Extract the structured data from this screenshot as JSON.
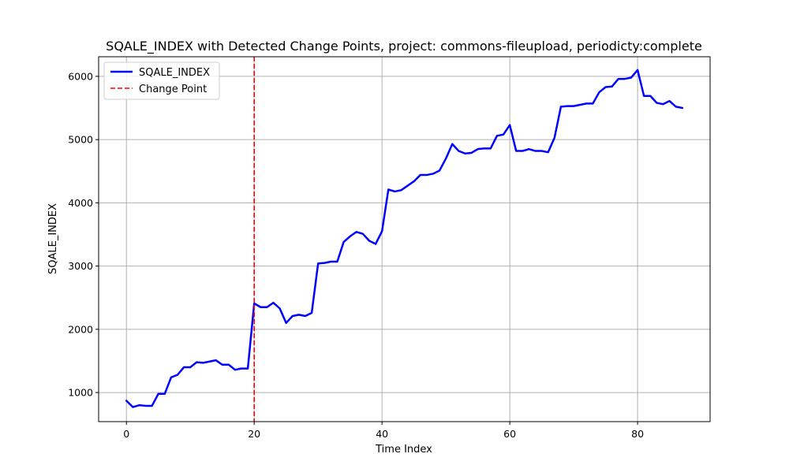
{
  "chart_data": {
    "type": "line",
    "title": "SQALE_INDEX with Detected Change Points, project: commons-fileupload, periodicty:complete",
    "xlabel": "Time Index",
    "ylabel": "SQALE_INDEX",
    "xlim": [
      -4.35,
      91.35
    ],
    "ylim": [
      540,
      6310
    ],
    "xticks": [
      0,
      20,
      40,
      60,
      80
    ],
    "yticks": [
      1000,
      2000,
      3000,
      4000,
      5000,
      6000
    ],
    "xtick_labels": [
      "0",
      "20",
      "40",
      "60",
      "80"
    ],
    "ytick_labels": [
      "1000",
      "2000",
      "3000",
      "4000",
      "5000",
      "6000"
    ],
    "grid": true,
    "legend_position": "top-left",
    "series": [
      {
        "name": "SQALE_INDEX",
        "color": "#0000ff",
        "x": [
          0,
          1,
          2,
          3,
          4,
          5,
          6,
          7,
          8,
          9,
          10,
          11,
          12,
          13,
          14,
          15,
          16,
          17,
          18,
          19,
          20,
          21,
          22,
          23,
          24,
          25,
          26,
          27,
          28,
          29,
          30,
          31,
          32,
          33,
          34,
          35,
          36,
          37,
          38,
          39,
          40,
          41,
          42,
          43,
          44,
          45,
          46,
          47,
          48,
          49,
          50,
          51,
          52,
          53,
          54,
          55,
          56,
          57,
          58,
          59,
          60,
          61,
          62,
          63,
          64,
          65,
          66,
          67,
          68,
          69,
          70,
          71,
          72,
          73,
          74,
          75,
          76,
          77,
          78,
          79,
          80,
          81,
          82,
          83,
          84,
          85,
          86,
          87
        ],
        "values": [
          870,
          770,
          800,
          790,
          790,
          980,
          980,
          1240,
          1280,
          1400,
          1400,
          1480,
          1470,
          1490,
          1510,
          1440,
          1440,
          1360,
          1380,
          1380,
          2410,
          2350,
          2350,
          2420,
          2330,
          2100,
          2210,
          2230,
          2210,
          2260,
          3040,
          3050,
          3070,
          3070,
          3380,
          3470,
          3540,
          3510,
          3400,
          3350,
          3550,
          4210,
          4180,
          4200,
          4270,
          4340,
          4440,
          4440,
          4460,
          4510,
          4700,
          4930,
          4820,
          4780,
          4790,
          4850,
          4860,
          4860,
          5060,
          5080,
          5230,
          4820,
          4820,
          4850,
          4820,
          4820,
          4800,
          5030,
          5520,
          5530,
          5530,
          5550,
          5570,
          5570,
          5750,
          5830,
          5840,
          5960,
          5960,
          5980,
          6100,
          5690,
          5690,
          5580,
          5560,
          5610,
          5520,
          5500
        ]
      },
      {
        "name": "Change Point",
        "color": "#ff0000",
        "style": "dashed",
        "x": [
          20
        ]
      }
    ]
  }
}
